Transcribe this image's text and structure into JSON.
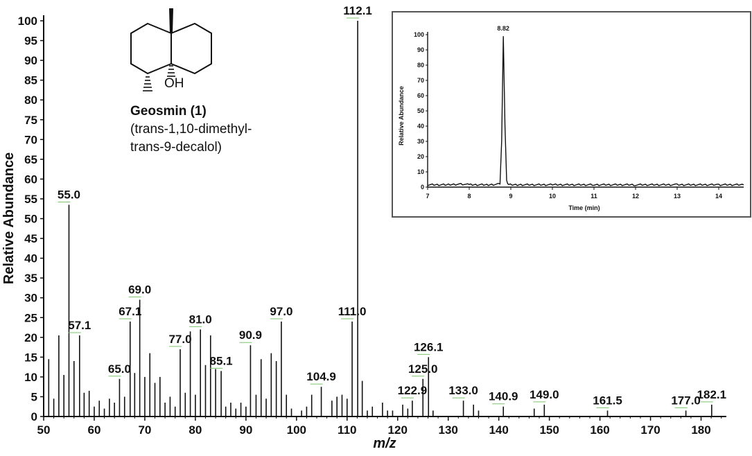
{
  "chart_data": [
    {
      "type": "bar",
      "xlabel": "m/z",
      "ylabel": "Relative Abundance",
      "xlim": [
        50,
        185
      ],
      "ylim": [
        0,
        100
      ],
      "x_ticks": [
        50,
        60,
        70,
        80,
        90,
        100,
        110,
        120,
        130,
        140,
        150,
        160,
        170,
        180
      ],
      "y_ticks": [
        0,
        5,
        10,
        15,
        20,
        25,
        30,
        35,
        40,
        45,
        50,
        55,
        60,
        65,
        70,
        75,
        80,
        85,
        90,
        95,
        100
      ],
      "peaks": [
        {
          "mz": 51.0,
          "ab": 14.5
        },
        {
          "mz": 52.0,
          "ab": 4.5
        },
        {
          "mz": 53.0,
          "ab": 20.5
        },
        {
          "mz": 54.0,
          "ab": 10.5
        },
        {
          "mz": 55.0,
          "ab": 53.5
        },
        {
          "mz": 56.0,
          "ab": 14.0
        },
        {
          "mz": 57.1,
          "ab": 20.5
        },
        {
          "mz": 58.0,
          "ab": 6.0
        },
        {
          "mz": 59.0,
          "ab": 6.5
        },
        {
          "mz": 60.0,
          "ab": 2.5
        },
        {
          "mz": 61.0,
          "ab": 4.0
        },
        {
          "mz": 62.0,
          "ab": 2.0
        },
        {
          "mz": 63.0,
          "ab": 4.5
        },
        {
          "mz": 64.0,
          "ab": 3.5
        },
        {
          "mz": 65.0,
          "ab": 9.5
        },
        {
          "mz": 66.0,
          "ab": 5.0
        },
        {
          "mz": 67.1,
          "ab": 24.0
        },
        {
          "mz": 68.0,
          "ab": 11.0
        },
        {
          "mz": 69.0,
          "ab": 29.5
        },
        {
          "mz": 70.0,
          "ab": 10.0
        },
        {
          "mz": 71.0,
          "ab": 16.0
        },
        {
          "mz": 72.0,
          "ab": 8.5
        },
        {
          "mz": 73.0,
          "ab": 10.0
        },
        {
          "mz": 74.0,
          "ab": 3.5
        },
        {
          "mz": 75.0,
          "ab": 5.0
        },
        {
          "mz": 76.0,
          "ab": 2.5
        },
        {
          "mz": 77.0,
          "ab": 17.0
        },
        {
          "mz": 78.0,
          "ab": 6.0
        },
        {
          "mz": 79.0,
          "ab": 21.5
        },
        {
          "mz": 80.0,
          "ab": 5.5
        },
        {
          "mz": 81.0,
          "ab": 22.0
        },
        {
          "mz": 82.0,
          "ab": 13.0
        },
        {
          "mz": 83.0,
          "ab": 20.5
        },
        {
          "mz": 84.0,
          "ab": 12.0
        },
        {
          "mz": 85.1,
          "ab": 11.5
        },
        {
          "mz": 86.0,
          "ab": 2.5
        },
        {
          "mz": 87.0,
          "ab": 3.5
        },
        {
          "mz": 88.0,
          "ab": 2.0
        },
        {
          "mz": 89.0,
          "ab": 3.5
        },
        {
          "mz": 90.0,
          "ab": 2.5
        },
        {
          "mz": 90.9,
          "ab": 18.0
        },
        {
          "mz": 92.0,
          "ab": 5.5
        },
        {
          "mz": 93.0,
          "ab": 14.5
        },
        {
          "mz": 94.0,
          "ab": 4.5
        },
        {
          "mz": 95.0,
          "ab": 16.0
        },
        {
          "mz": 96.0,
          "ab": 14.0
        },
        {
          "mz": 97.0,
          "ab": 24.0
        },
        {
          "mz": 98.0,
          "ab": 5.5
        },
        {
          "mz": 99.0,
          "ab": 2.0
        },
        {
          "mz": 101.0,
          "ab": 1.5
        },
        {
          "mz": 102.0,
          "ab": 2.5
        },
        {
          "mz": 103.0,
          "ab": 5.5
        },
        {
          "mz": 104.9,
          "ab": 7.5
        },
        {
          "mz": 107.0,
          "ab": 4.0
        },
        {
          "mz": 108.0,
          "ab": 5.0
        },
        {
          "mz": 109.0,
          "ab": 5.5
        },
        {
          "mz": 110.0,
          "ab": 4.5
        },
        {
          "mz": 111.0,
          "ab": 24.0
        },
        {
          "mz": 112.1,
          "ab": 100.0
        },
        {
          "mz": 113.0,
          "ab": 9.0
        },
        {
          "mz": 114.0,
          "ab": 1.5
        },
        {
          "mz": 115.0,
          "ab": 2.5
        },
        {
          "mz": 117.0,
          "ab": 3.5
        },
        {
          "mz": 118.0,
          "ab": 1.5
        },
        {
          "mz": 119.0,
          "ab": 1.5
        },
        {
          "mz": 121.0,
          "ab": 3.0
        },
        {
          "mz": 122.0,
          "ab": 2.0
        },
        {
          "mz": 122.9,
          "ab": 4.0
        },
        {
          "mz": 125.0,
          "ab": 9.5
        },
        {
          "mz": 126.1,
          "ab": 15.0
        },
        {
          "mz": 127.0,
          "ab": 1.5
        },
        {
          "mz": 133.0,
          "ab": 4.0
        },
        {
          "mz": 135.0,
          "ab": 3.0
        },
        {
          "mz": 136.0,
          "ab": 1.5
        },
        {
          "mz": 140.9,
          "ab": 2.5
        },
        {
          "mz": 147.0,
          "ab": 2.0
        },
        {
          "mz": 149.0,
          "ab": 3.0
        },
        {
          "mz": 161.5,
          "ab": 1.5
        },
        {
          "mz": 177.0,
          "ab": 1.5
        },
        {
          "mz": 182.1,
          "ab": 3.0
        }
      ],
      "peak_labels": [
        {
          "text": "55.0",
          "mz": 55.0,
          "ab": 53.5
        },
        {
          "text": "57.1",
          "mz": 57.1,
          "ab": 20.5
        },
        {
          "text": "65.0",
          "mz": 65.0,
          "ab": 9.5
        },
        {
          "text": "67.1",
          "mz": 67.1,
          "ab": 24.0
        },
        {
          "text": "69.0",
          "mz": 69.0,
          "ab": 29.5
        },
        {
          "text": "77.0",
          "mz": 77.0,
          "ab": 17.0
        },
        {
          "text": "81.0",
          "mz": 81.0,
          "ab": 22.0
        },
        {
          "text": "85.1",
          "mz": 85.1,
          "ab": 11.5
        },
        {
          "text": "90.9",
          "mz": 90.9,
          "ab": 18.0
        },
        {
          "text": "97.0",
          "mz": 97.0,
          "ab": 24.0
        },
        {
          "text": "104.9",
          "mz": 104.9,
          "ab": 7.5
        },
        {
          "text": "111.0",
          "mz": 111.0,
          "ab": 24.0
        },
        {
          "text": "112.1",
          "mz": 112.1,
          "ab": 100.0
        },
        {
          "text": "122.9",
          "mz": 122.9,
          "ab": 4.0
        },
        {
          "text": "125.0",
          "mz": 125.0,
          "ab": 9.5
        },
        {
          "text": "126.1",
          "mz": 126.1,
          "ab": 15.0
        },
        {
          "text": "133.0",
          "mz": 133.0,
          "ab": 4.0
        },
        {
          "text": "140.9",
          "mz": 140.9,
          "ab": 2.5
        },
        {
          "text": "149.0",
          "mz": 149.0,
          "ab": 3.0
        },
        {
          "text": "161.5",
          "mz": 161.5,
          "ab": 1.5
        },
        {
          "text": "177.0",
          "mz": 177.0,
          "ab": 1.5
        },
        {
          "text": "182.1",
          "mz": 182.1,
          "ab": 3.0
        }
      ]
    },
    {
      "type": "line",
      "xlabel": "Time (min)",
      "ylabel": "Relative Abundance",
      "xlim": [
        7,
        14.6
      ],
      "ylim": [
        0,
        100
      ],
      "x_ticks": [
        7,
        8,
        9,
        10,
        11,
        12,
        13,
        14
      ],
      "y_ticks": [
        0,
        10,
        20,
        30,
        40,
        50,
        60,
        70,
        80,
        90,
        100
      ],
      "peak_label": "8.82",
      "x": [
        7.0,
        7.5,
        7.8,
        8.0,
        8.5,
        8.74,
        8.78,
        8.82,
        8.86,
        8.9,
        8.95,
        9.2,
        10.0,
        11.0,
        12.0,
        13.0,
        14.0,
        14.6
      ],
      "y": [
        1.5,
        1.5,
        2.0,
        1.5,
        1.5,
        2.0,
        30.0,
        99.0,
        40.0,
        4.0,
        1.5,
        1.5,
        1.5,
        1.5,
        1.5,
        1.5,
        1.5,
        1.5
      ]
    }
  ],
  "structure": {
    "name": "Geosmin (1)",
    "line1": "(trans-1,10-dimethyl-",
    "line2": "trans-9-decalol)",
    "oh_label": "OH"
  },
  "colors": {
    "ink": "#111111",
    "leader": "#7cc36b",
    "border": "#555555"
  }
}
